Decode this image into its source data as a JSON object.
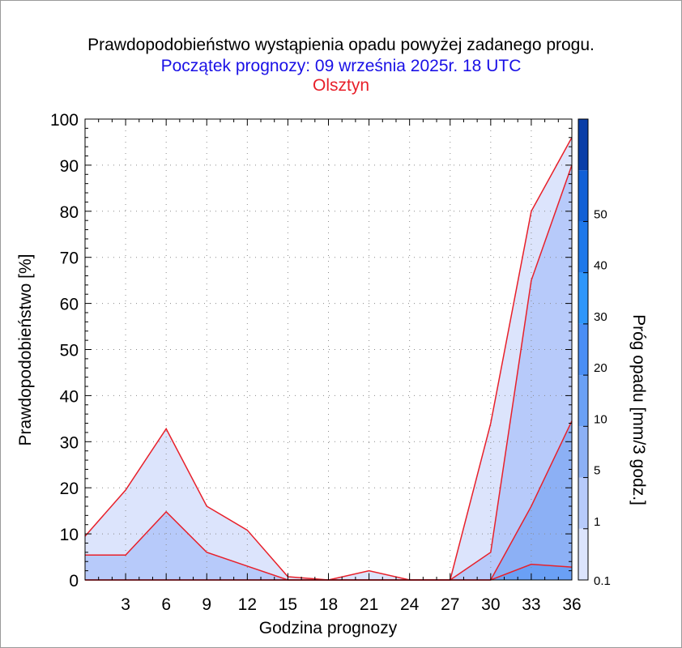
{
  "titles": {
    "line1": "Prawdopodobieństwo wystąpienia opadu powyżej zadanego progu.",
    "line2": "Początek prognozy: 09 września 2025r. 18 UTC",
    "line3": "Olsztyn"
  },
  "colors": {
    "title": "#000000",
    "subtitle": "#1a10e6",
    "location": "#e8202a",
    "line": "#e8202a"
  },
  "chart_data": {
    "type": "area",
    "xlabel": "Godzina prognozy",
    "ylabel": "Prawdopodobieństwo [%]",
    "colorbar_label": "Próg opadu [mm/3 godz.]",
    "xlim": [
      0,
      36
    ],
    "ylim": [
      0,
      100
    ],
    "x_ticks": [
      3,
      6,
      9,
      12,
      15,
      18,
      21,
      24,
      27,
      30,
      33,
      36
    ],
    "y_ticks": [
      0,
      10,
      20,
      30,
      40,
      50,
      60,
      70,
      80,
      90,
      100
    ],
    "grid": "dotted",
    "x": [
      0,
      3,
      6,
      9,
      12,
      15,
      18,
      21,
      24,
      27,
      30,
      33,
      36
    ],
    "series": [
      {
        "threshold": "0.1",
        "color": "#dce4fc",
        "values": [
          9.5,
          19.5,
          32.8,
          16,
          10.8,
          0.7,
          0,
          2,
          0,
          0,
          34,
          80,
          96
        ]
      },
      {
        "threshold": "1",
        "color": "#b7cafa",
        "values": [
          5.4,
          5.4,
          14.8,
          6,
          3,
          0,
          0,
          0,
          0,
          0,
          6,
          65,
          90
        ]
      },
      {
        "threshold": "5",
        "color": "#8cb0f5",
        "values": [
          0,
          0,
          0,
          0,
          0,
          0,
          0,
          0,
          0,
          0,
          0,
          16,
          34.5
        ]
      },
      {
        "threshold": "10",
        "color": "#6aa0f5",
        "values": [
          0,
          0,
          0,
          0,
          0,
          0,
          0,
          0,
          0,
          0,
          0,
          3.4,
          2.8
        ]
      }
    ],
    "colorbar": {
      "labels": [
        "0.1",
        "1",
        "5",
        "10",
        "20",
        "30",
        "40",
        "50"
      ],
      "levels": [
        0.1,
        1,
        5,
        10,
        20,
        30,
        40,
        50,
        60
      ],
      "colors": [
        "#dce4fc",
        "#b7cafa",
        "#8cb0f5",
        "#6aa0f5",
        "#4a8ef5",
        "#2e96fa",
        "#1e78ea",
        "#1260d6",
        "#0a3ea8"
      ]
    }
  }
}
